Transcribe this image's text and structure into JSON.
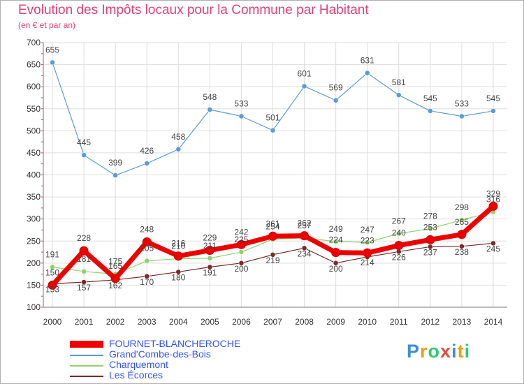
{
  "header": {
    "title": "Evolution des Impôts locaux pour la Commune par Habitant",
    "subtitle": "(en € et par an)"
  },
  "logo": {
    "text": "Proxiti",
    "colors": [
      "#3a8fd8",
      "#f39c12",
      "#2ecc71",
      "#e74c3c",
      "#3a8fd8",
      "#f39c12",
      "#2ecc71"
    ]
  },
  "chart_data": {
    "type": "line",
    "x": [
      "2000",
      "2001",
      "2002",
      "2003",
      "2004",
      "2005",
      "2006",
      "2007",
      "2008",
      "2009",
      "2010",
      "2011",
      "2012",
      "2013",
      "2014"
    ],
    "ylim": [
      100,
      700
    ],
    "yticks": [
      100,
      150,
      200,
      250,
      300,
      350,
      400,
      450,
      500,
      550,
      600,
      650,
      700
    ],
    "grid": true,
    "legend_position": "bottom-left",
    "series": [
      {
        "name": "FOURNET-BLANCHEROCHE",
        "color": "#ee0000",
        "values": [
          150,
          228,
          165,
          248,
          216,
          229,
          242,
          261,
          262,
          224,
          223,
          240,
          253,
          265,
          329
        ],
        "labels": [
          "150",
          "228",
          "165",
          "248",
          "216",
          "229",
          "242",
          "261",
          "262",
          "224",
          "223",
          "240",
          "253",
          "265",
          "329"
        ]
      },
      {
        "name": "Grand'Combe-des-Bois",
        "color": "#5b9bd5",
        "values": [
          655,
          445,
          399,
          426,
          458,
          548,
          533,
          501,
          601,
          569,
          631,
          581,
          545,
          533,
          545
        ],
        "labels": [
          "655",
          "445",
          "399",
          "426",
          "458",
          "548",
          "533",
          "501",
          "601",
          "569",
          "631",
          "581",
          "545",
          "533",
          "545"
        ]
      },
      {
        "name": "Charquemont",
        "color": "#8fd16f",
        "values": [
          191,
          181,
          175,
          205,
          210,
          211,
          225,
          254,
          257,
          249,
          247,
          267,
          278,
          298,
          316
        ],
        "labels": [
          "191",
          "181",
          "175",
          "205",
          "210",
          "211",
          "225",
          "254",
          "257",
          "249",
          "247",
          "267",
          "278",
          "298",
          "316"
        ]
      },
      {
        "name": "Les Écorces",
        "color": "#7a2a2a",
        "values": [
          153,
          157,
          162,
          170,
          180,
          191,
          200,
          219,
          234,
          200,
          214,
          226,
          237,
          238,
          245
        ],
        "labels": [
          "153",
          "157",
          "162",
          "170",
          "180",
          "191",
          "200",
          "219",
          "234",
          "200",
          "214",
          "226",
          "237",
          "238",
          "245"
        ]
      }
    ]
  }
}
